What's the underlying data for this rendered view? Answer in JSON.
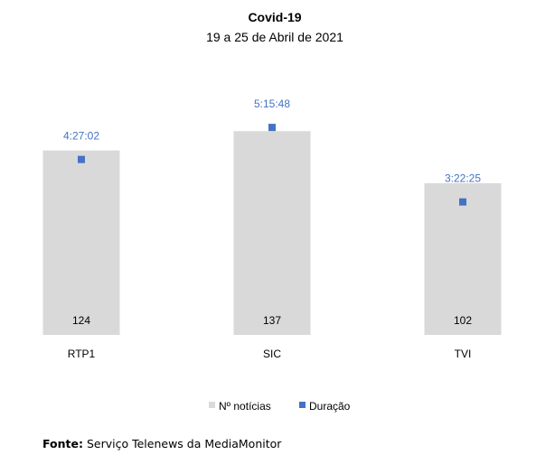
{
  "chart_data": {
    "type": "bar",
    "title": "Covid-19",
    "subtitle": "19 a 25 de Abril de 2021",
    "categories": [
      "RTP1",
      "SIC",
      "TVI"
    ],
    "series": [
      {
        "name": "Nº notícias",
        "type": "bar",
        "values": [
          124,
          137,
          102
        ],
        "color": "#d9d9d9"
      },
      {
        "name": "Duração",
        "type": "scatter",
        "values": [
          "4:27:02",
          "5:15:48",
          "3:22:25"
        ],
        "seconds": [
          16022,
          18948,
          12145
        ],
        "color": "#4472c4"
      }
    ],
    "legend": "bottom",
    "grid": false
  },
  "source": {
    "label": "Fonte:",
    "text": " Serviço Telenews da MediaMonitor"
  }
}
